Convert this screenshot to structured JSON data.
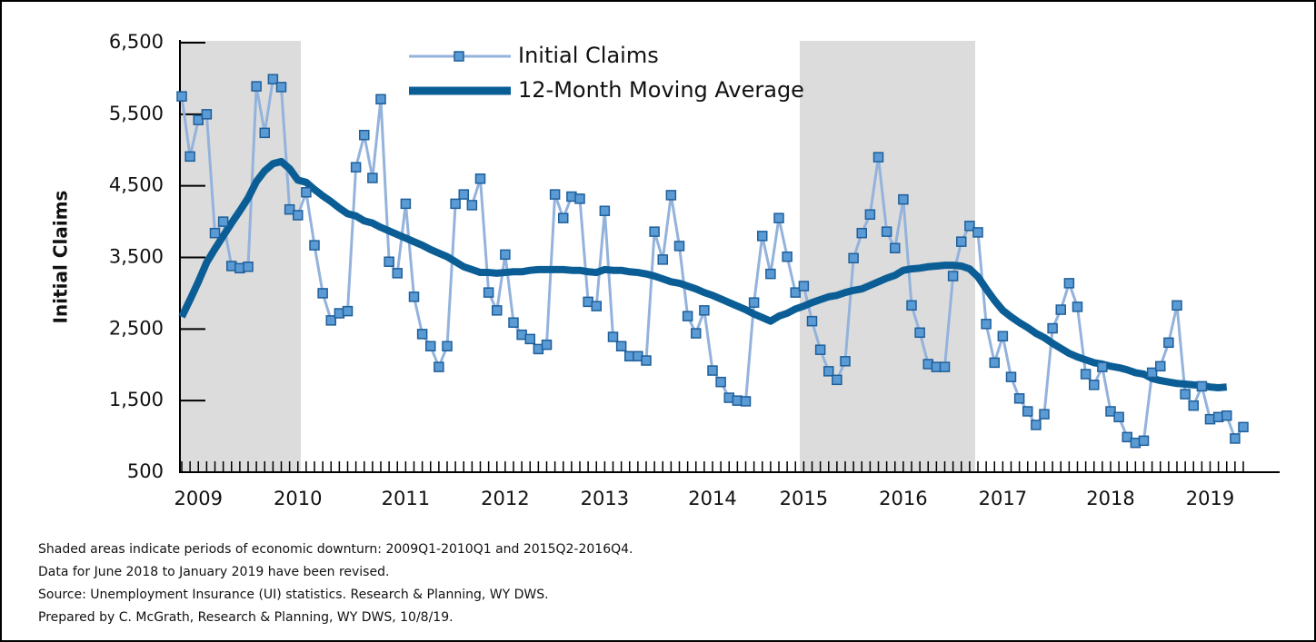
{
  "chart_data": {
    "type": "line",
    "y_label": "Initial Claims",
    "notes": [
      "Shaded areas indicate periods of economic downturn: 2009Q1-2010Q1 and 2015Q2-2016Q4.",
      "Data for June 2018 to January 2019 have been revised.",
      "Source: Unemployment Insurance (UI) statistics. Research & Planning, WY DWS.",
      "Prepared by C. McGrath, Research & Planning, WY DWS, 10/8/19."
    ],
    "categories": [
      null,
      null,
      "2009",
      null,
      null,
      null,
      null,
      null,
      null,
      null,
      null,
      null,
      null,
      null,
      "2010",
      null,
      null,
      null,
      null,
      null,
      null,
      null,
      null,
      null,
      null,
      null,
      null,
      "2011",
      null,
      null,
      null,
      null,
      null,
      null,
      null,
      null,
      null,
      null,
      null,
      "2012",
      null,
      null,
      null,
      null,
      null,
      null,
      null,
      null,
      null,
      null,
      null,
      "2013",
      null,
      null,
      null,
      null,
      null,
      null,
      null,
      null,
      null,
      null,
      null,
      null,
      "2014",
      null,
      null,
      null,
      null,
      null,
      null,
      null,
      null,
      null,
      null,
      "2015",
      null,
      null,
      null,
      null,
      null,
      null,
      null,
      null,
      null,
      null,
      null,
      "2016",
      null,
      null,
      null,
      null,
      null,
      null,
      null,
      null,
      null,
      null,
      null,
      "2017",
      null,
      null,
      null,
      null,
      null,
      null,
      null,
      null,
      null,
      null,
      null,
      null,
      "2018",
      null,
      null,
      null,
      null,
      null,
      null,
      null,
      null,
      null,
      null,
      null,
      "2019",
      null,
      null,
      null,
      null
    ],
    "series": [
      {
        "name": "Initial Claims",
        "color": "#94b3dc",
        "marker_color": "#5b9bd5",
        "values": [
          5750,
          4910,
          5420,
          5500,
          3840,
          4000,
          3380,
          3350,
          3370,
          5890,
          5240,
          5990,
          5880,
          4170,
          4090,
          4410,
          3670,
          3000,
          2620,
          2720,
          2750,
          4760,
          5210,
          4610,
          5710,
          3440,
          3280,
          4250,
          2950,
          2430,
          2260,
          1970,
          2260,
          4250,
          4380,
          4230,
          4600,
          3010,
          2760,
          3540,
          2590,
          2420,
          2360,
          2220,
          2280,
          4380,
          4050,
          4350,
          4320,
          2880,
          2820,
          4150,
          2390,
          2260,
          2120,
          2120,
          2060,
          3860,
          3470,
          4370,
          3660,
          2680,
          2440,
          2760,
          1920,
          1760,
          1540,
          1500,
          1490,
          2870,
          3800,
          3270,
          4050,
          3510,
          3010,
          3100,
          2610,
          2210,
          1910,
          1790,
          2050,
          3490,
          3840,
          4100,
          4900,
          3860,
          3630,
          4310,
          2830,
          2450,
          2010,
          1970,
          1970,
          3240,
          3720,
          3940,
          3850,
          2570,
          2030,
          2400,
          1830,
          1530,
          1350,
          1160,
          1310,
          2510,
          2770,
          3140,
          2810,
          1870,
          1720,
          1970,
          1350,
          1270,
          990,
          910,
          940,
          1890,
          1980,
          2310,
          2830,
          1590,
          1430,
          1700,
          1240,
          1270,
          1290,
          970,
          1130
        ]
      },
      {
        "name": "12-Month Moving Average",
        "color": "#0b5e95",
        "values": [
          2670,
          2910,
          3160,
          3430,
          3620,
          3800,
          3980,
          4150,
          4330,
          4560,
          4710,
          4810,
          4840,
          4740,
          4580,
          4550,
          4450,
          4360,
          4280,
          4190,
          4110,
          4080,
          4010,
          3980,
          3920,
          3870,
          3820,
          3770,
          3720,
          3670,
          3610,
          3560,
          3510,
          3440,
          3370,
          3330,
          3290,
          3290,
          3280,
          3290,
          3300,
          3300,
          3320,
          3330,
          3330,
          3330,
          3330,
          3320,
          3320,
          3300,
          3290,
          3330,
          3320,
          3320,
          3300,
          3290,
          3270,
          3240,
          3200,
          3160,
          3140,
          3100,
          3060,
          3010,
          2970,
          2920,
          2870,
          2820,
          2770,
          2710,
          2660,
          2610,
          2680,
          2720,
          2780,
          2820,
          2870,
          2910,
          2950,
          2970,
          3010,
          3040,
          3060,
          3110,
          3160,
          3210,
          3250,
          3320,
          3340,
          3350,
          3370,
          3380,
          3390,
          3390,
          3380,
          3340,
          3230,
          3060,
          2900,
          2760,
          2670,
          2590,
          2520,
          2440,
          2380,
          2300,
          2230,
          2160,
          2110,
          2070,
          2030,
          2010,
          1980,
          1960,
          1930,
          1890,
          1870,
          1810,
          1780,
          1760,
          1740,
          1730,
          1720,
          1710,
          1690,
          1680,
          1690,
          null,
          null
        ]
      }
    ],
    "ylim": [
      500,
      6500
    ],
    "yticks": [
      500,
      {
        "value": 1500,
        "label": "1,500"
      },
      {
        "value": 2500,
        "label": "2,500"
      },
      {
        "value": 3500,
        "label": "3,500"
      },
      {
        "value": 4500,
        "label": "4,500"
      },
      {
        "value": 5500,
        "label": "5,500"
      },
      {
        "value": 6500,
        "label": "6,500"
      }
    ]
  }
}
